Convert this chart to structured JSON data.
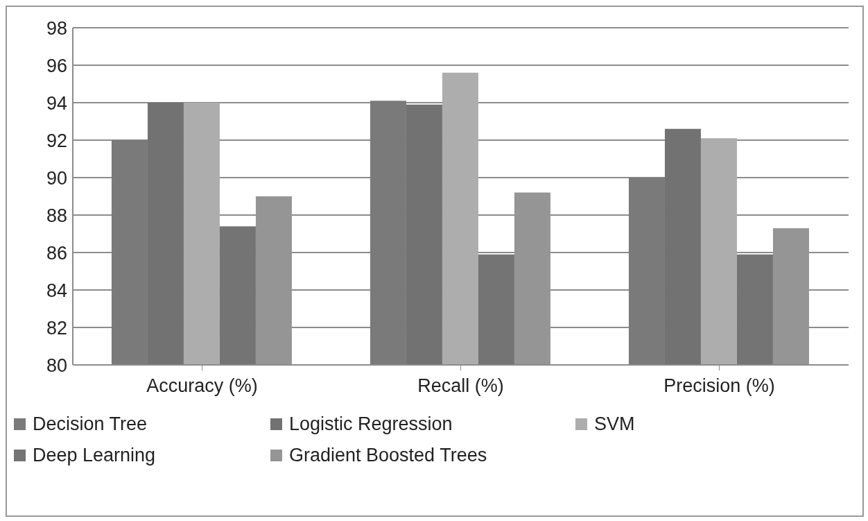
{
  "chart_data": {
    "type": "bar",
    "categories": [
      "Accuracy (%)",
      "Recall (%)",
      "Precision (%)"
    ],
    "series": [
      {
        "name": "Decision Tree",
        "color": "#7a7a7a",
        "values": [
          92.0,
          94.1,
          90.0
        ]
      },
      {
        "name": "Logistic Regression",
        "color": "#727272",
        "values": [
          94.0,
          93.9,
          92.6
        ]
      },
      {
        "name": "SVM",
        "color": "#adadad",
        "values": [
          94.0,
          95.6,
          92.1
        ]
      },
      {
        "name": "Deep Learning",
        "color": "#747474",
        "values": [
          87.4,
          85.9,
          85.9
        ]
      },
      {
        "name": "Gradient Boosted Trees",
        "color": "#959595",
        "values": [
          89.0,
          89.2,
          87.3
        ]
      }
    ],
    "ylim": [
      80,
      98
    ],
    "yticks": [
      80,
      82,
      84,
      86,
      88,
      90,
      92,
      94,
      96,
      98
    ],
    "grid": "y",
    "legend": "bottom"
  }
}
